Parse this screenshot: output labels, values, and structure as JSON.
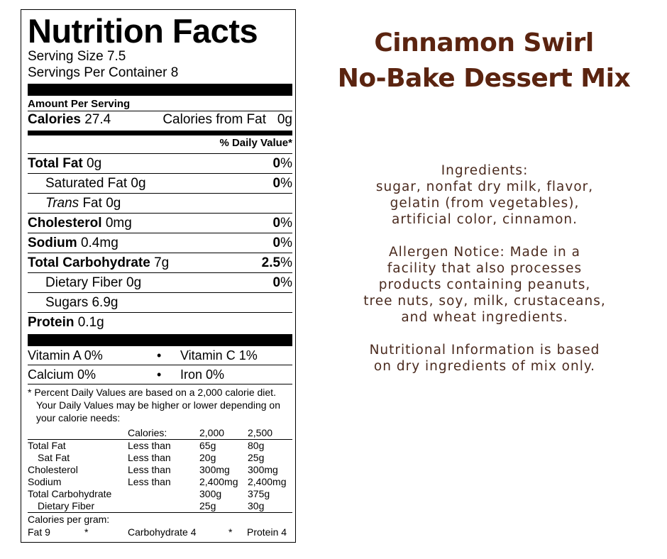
{
  "nutrition_label": {
    "title": "Nutrition Facts",
    "serving_size": "Serving Size 7.5",
    "servings_per_container": "Servings Per Container 8",
    "amount_per_serving": "Amount Per Serving",
    "calories_label": "Calories",
    "calories_value": "27.4",
    "calories_from_fat_label": "Calories from Fat",
    "calories_from_fat_value": "0g",
    "daily_value_header": "% Daily Value*",
    "nutrients": [
      {
        "label": "Total Fat",
        "amount": "0g",
        "pct": "0",
        "pct_sign": "%"
      },
      {
        "label": "Saturated Fat",
        "amount": "0g",
        "pct": "0",
        "pct_sign": "%"
      },
      {
        "label": "Trans",
        "label_rest": " Fat",
        "amount": "0g"
      },
      {
        "label": "Cholesterol",
        "amount": "0mg",
        "pct": "0",
        "pct_sign": "%"
      },
      {
        "label": "Sodium",
        "amount": "0.4mg",
        "pct": "0",
        "pct_sign": "%"
      },
      {
        "label": "Total Carbohydrate",
        "amount": "7g",
        "pct": "2.5",
        "pct_sign": "%"
      },
      {
        "label": "Dietary Fiber",
        "amount": "0g",
        "pct": "0",
        "pct_sign": "%"
      },
      {
        "label": "Sugars",
        "amount": "6.9g"
      },
      {
        "label": "Protein",
        "amount": "0.1g"
      }
    ],
    "vitamins": {
      "vitamin_a": "Vitamin A 0%",
      "vitamin_c": "Vitamin C 1%",
      "calcium": "Calcium 0%",
      "iron": "Iron 0%",
      "bullet": "•"
    },
    "footnote": {
      "line1": "* Percent Daily Values are based on a 2,000 calorie diet.",
      "line2": "Your Daily Values may be higher or lower depending on",
      "line3": "your calorie needs:"
    },
    "dv_table": {
      "header": [
        "",
        "Calories:",
        "2,000",
        "2,500"
      ],
      "rows": [
        [
          "Total Fat",
          "Less than",
          "65g",
          "80g"
        ],
        [
          "Sat Fat",
          "Less than",
          "20g",
          "25g"
        ],
        [
          "Cholesterol",
          "Less than",
          "300mg",
          "300mg"
        ],
        [
          "Sodium",
          "Less than",
          "2,400mg",
          "2,400mg"
        ],
        [
          "Total Carbohydrate",
          "",
          "300g",
          "375g"
        ],
        [
          "Dietary Fiber",
          "",
          "25g",
          "30g"
        ]
      ]
    },
    "calories_per_gram": {
      "label": "Calories per gram:",
      "fat": "Fat 9",
      "star": "*",
      "carb": "Carbohydrate 4",
      "protein": "Protein 4"
    }
  },
  "product": {
    "title_line1": "Cinnamon Swirl",
    "title_line2": "No-Bake Dessert Mix"
  },
  "info": {
    "ingredients_heading": "Ingredients:",
    "ingredients_lines": [
      "sugar, nonfat dry milk, flavor,",
      "gelatin (from vegetables),",
      "artificial color, cinnamon."
    ],
    "allergen_lines": [
      "Allergen Notice: Made in a",
      "facility that also processes",
      "products containing peanuts,",
      "tree nuts, soy, milk, crustaceans,",
      "and wheat ingredients."
    ],
    "nutrition_note_lines": [
      "Nutritional Information is based",
      "on dry ingredients of mix only."
    ]
  }
}
